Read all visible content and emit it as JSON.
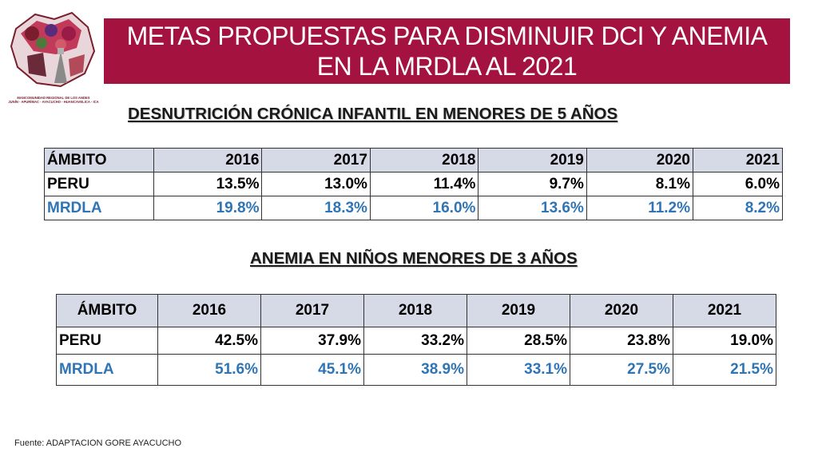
{
  "logo": {
    "caption": "MANCOMUNIDAD REGIONAL DE LOS ANDES",
    "subcaption": "JUNÍN - APURÍMAC - AYACUCHO - HUANCAVELICA - ICA"
  },
  "title": "METAS PROPUESTAS PARA DISMINUIR DCI Y ANEMIA EN LA MRDLA AL 2021",
  "dci": {
    "heading": "DESNUTRICIÓN CRÓNICA INFANTIL EN MENORES DE 5 AÑOS",
    "columns": [
      "ÁMBITO",
      "2016",
      "2017",
      "2018",
      "2019",
      "2020",
      "2021"
    ],
    "rows": [
      {
        "label": "PERU",
        "values": [
          "13.5%",
          "13.0%",
          "11.4%",
          "9.7%",
          "8.1%",
          "6.0%"
        ]
      },
      {
        "label": "MRDLA",
        "values": [
          "19.8%",
          "18.3%",
          "16.0%",
          "13.6%",
          "11.2%",
          "8.2%"
        ]
      }
    ]
  },
  "anemia": {
    "heading": "ANEMIA EN NIÑOS MENORES DE 3 AÑOS",
    "columns": [
      "ÁMBITO",
      "2016",
      "2017",
      "2018",
      "2019",
      "2020",
      "2021"
    ],
    "rows": [
      {
        "label": "PERU",
        "values": [
          "42.5%",
          "37.9%",
          "33.2%",
          "28.5%",
          "23.8%",
          "19.0%"
        ]
      },
      {
        "label": "MRDLA",
        "values": [
          "51.6%",
          "45.1%",
          "38.9%",
          "33.1%",
          "27.5%",
          "21.5%"
        ]
      }
    ]
  },
  "source": "Fuente: ADAPTACION GORE AYACUCHO",
  "colors": {
    "title_bg": "#a4123f",
    "header_bg": "#d6d9e6",
    "mrdla_text": "#2f75b5"
  }
}
